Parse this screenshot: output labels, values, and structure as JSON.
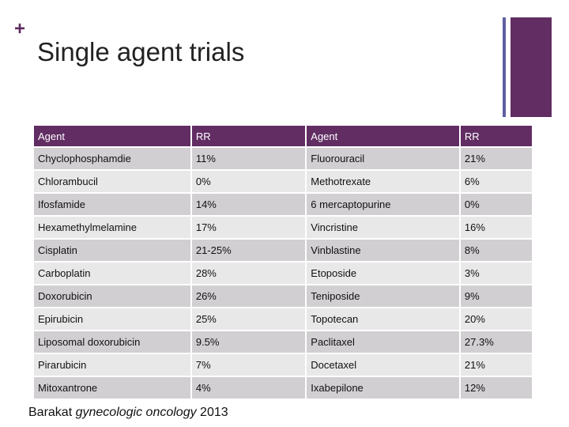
{
  "slide": {
    "plus": "+",
    "title": "Single agent trials"
  },
  "table": {
    "headers": [
      "Agent",
      "RR",
      "Agent",
      "RR"
    ],
    "rows": [
      [
        "Chyclophosphamdie",
        "11%",
        "Fluorouracil",
        "21%"
      ],
      [
        "Chlorambucil",
        "0%",
        "Methotrexate",
        "6%"
      ],
      [
        "Ifosfamide",
        "14%",
        "6 mercaptopurine",
        "0%"
      ],
      [
        "Hexamethylmelamine",
        "17%",
        "Vincristine",
        "16%"
      ],
      [
        "Cisplatin",
        "21-25%",
        "Vinblastine",
        "8%"
      ],
      [
        "Carboplatin",
        "28%",
        "Etoposide",
        "3%"
      ],
      [
        "Doxorubicin",
        "26%",
        "Teniposide",
        "9%"
      ],
      [
        "Epirubicin",
        "25%",
        "Topotecan",
        "20%"
      ],
      [
        "Liposomal doxorubicin",
        "9.5%",
        "Paclitaxel",
        "27.3%"
      ],
      [
        "Pirarubicin",
        "7%",
        "Docetaxel",
        "21%"
      ],
      [
        "Mitoxantrone",
        "4%",
        "Ixabepilone",
        "12%"
      ]
    ]
  },
  "citation": {
    "author": "Barakat",
    "source": "gynecologic oncology",
    "year": "2013"
  },
  "colors": {
    "accent": "#612d63",
    "accent_secondary": "#5f5fa0",
    "row_dark": "#d2cfd2",
    "row_light": "#e9e8e9"
  }
}
